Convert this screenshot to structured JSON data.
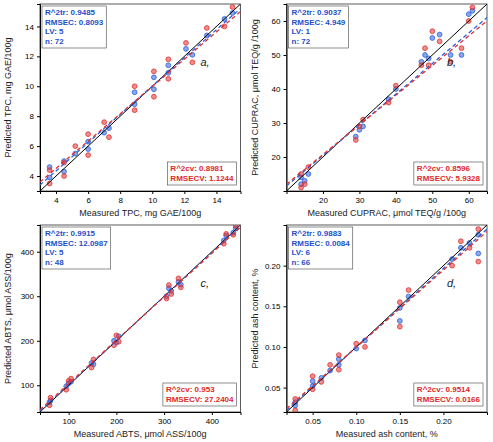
{
  "chart_data": [
    {
      "type": "scatter",
      "title": "a,",
      "x_label": "Measured TPC, mg GAE/100g",
      "y_label": "Predicted TPC, mg GAE/100g",
      "xlim": [
        3,
        15.5
      ],
      "ylim": [
        3,
        15.5
      ],
      "xticks": [
        4,
        6,
        8,
        10,
        12,
        14
      ],
      "yticks": [
        4,
        6,
        8,
        10,
        12,
        14
      ],
      "annotations": [
        {
          "color": "#1f4fc8",
          "lines": [
            "R^2tr: 0.9485",
            "RMSEC: 0.8093",
            "LV: 5",
            "n: 72"
          ]
        },
        {
          "color": "#e02828",
          "lines": [
            "R^2cv: 0.8981",
            "RMSECV: 1.1244"
          ]
        }
      ],
      "series": [
        {
          "type": "scatter",
          "marker": "circle",
          "color": "#2b5fd9",
          "x": [
            3.6,
            3.6,
            4.5,
            4.5,
            5.2,
            6.0,
            6.0,
            7.0,
            7.3,
            8.9,
            8.9,
            10.1,
            10.1,
            11.0,
            11.0,
            12.1,
            12.5,
            13.4,
            14.5,
            15.0
          ],
          "values": [
            3.9,
            4.6,
            4.3,
            5.0,
            5.5,
            6.3,
            5.8,
            6.9,
            7.2,
            9.6,
            8.8,
            10.6,
            9.8,
            10.9,
            11.4,
            12.5,
            12.1,
            13.4,
            14.5,
            14.9
          ]
        },
        {
          "type": "scatter",
          "marker": "circle",
          "color": "#e03030",
          "x": [
            3.6,
            3.6,
            4.5,
            4.5,
            5.2,
            6.0,
            6.0,
            7.0,
            7.3,
            8.9,
            8.9,
            10.1,
            10.1,
            11.0,
            11.0,
            12.1,
            12.5,
            13.4,
            14.5,
            15.0
          ],
          "values": [
            4.4,
            3.5,
            4.9,
            4.0,
            6.0,
            6.8,
            5.4,
            7.6,
            6.6,
            10.0,
            8.4,
            11.0,
            9.3,
            11.8,
            10.5,
            12.9,
            11.6,
            13.9,
            14.0,
            15.3
          ]
        },
        {
          "type": "line",
          "line_style": "solid",
          "color": "#000000",
          "x": [
            3,
            15.5
          ],
          "values": [
            3,
            15.5
          ]
        },
        {
          "type": "line",
          "line_style": "dashed",
          "color": "#2b5fd9",
          "x": [
            3,
            15.5
          ],
          "values": [
            3.4,
            15.2
          ]
        },
        {
          "type": "line",
          "line_style": "dashed",
          "color": "#e03030",
          "x": [
            3,
            15.5
          ],
          "values": [
            3.6,
            15.0
          ]
        }
      ]
    },
    {
      "type": "scatter",
      "title": "b,",
      "x_label": "Measured CUPRAC, μmol TEQ/g /100g",
      "y_label": "Predicted CUPRAC, μmol TEQ/g /100g",
      "xlim": [
        10,
        65
      ],
      "ylim": [
        10,
        65
      ],
      "xticks": [
        20,
        30,
        40,
        50,
        60
      ],
      "yticks": [
        20,
        30,
        40,
        50,
        60
      ],
      "annotations": [
        {
          "color": "#1f4fc8",
          "lines": [
            "R^2tr: 0.9037",
            "RMSEC: 4.949",
            "LV: 1",
            "n: 72"
          ]
        },
        {
          "color": "#e02828",
          "lines": [
            "R^2cv: 0.8596",
            "RMSECV: 5.9328"
          ]
        }
      ],
      "series": [
        {
          "type": "scatter",
          "marker": "circle",
          "color": "#2b5fd9",
          "x": [
            14,
            14,
            15,
            16,
            29,
            30,
            31,
            38,
            40,
            47,
            48,
            49,
            50,
            52,
            55,
            58,
            60,
            61
          ],
          "values": [
            12,
            14,
            13,
            15,
            26,
            28,
            29,
            37,
            40,
            48,
            50,
            49,
            55,
            56,
            50,
            50,
            62,
            63
          ]
        },
        {
          "type": "scatter",
          "marker": "circle",
          "color": "#e03030",
          "x": [
            14,
            14,
            15,
            16,
            29,
            30,
            31,
            38,
            40,
            47,
            48,
            49,
            50,
            52,
            55,
            58,
            60,
            61
          ],
          "values": [
            11,
            15,
            12,
            17,
            25,
            29,
            31,
            36,
            41,
            47,
            52,
            47,
            57,
            54,
            48,
            52,
            60,
            64
          ]
        },
        {
          "type": "line",
          "line_style": "solid",
          "color": "#000000",
          "x": [
            10,
            65
          ],
          "values": [
            10,
            65
          ]
        },
        {
          "type": "line",
          "line_style": "dashed",
          "color": "#2b5fd9",
          "x": [
            10,
            65
          ],
          "values": [
            11.5,
            61
          ]
        },
        {
          "type": "line",
          "line_style": "dashed",
          "color": "#e03030",
          "x": [
            10,
            65
          ],
          "values": [
            12,
            60
          ]
        }
      ]
    },
    {
      "type": "scatter",
      "title": "c,",
      "x_label": "Measured ABTS, μmol ASS/100g",
      "y_label": "Predicted ABTS, μmol ASS/100g",
      "xlim": [
        40,
        460
      ],
      "ylim": [
        40,
        460
      ],
      "xticks": [
        100,
        200,
        300,
        400
      ],
      "yticks": [
        100,
        200,
        300,
        400
      ],
      "annotations": [
        {
          "color": "#1f4fc8",
          "lines": [
            "R^2tr: 0.9915",
            "RMSEC: 12.0987",
            "LV: 5",
            "n: 48"
          ]
        },
        {
          "color": "#e02828",
          "lines": [
            "R^2cv: 0.953",
            "RMSECV: 27.2404"
          ]
        }
      ],
      "series": [
        {
          "type": "scatter",
          "marker": "circle",
          "color": "#2b5fd9",
          "x": [
            60,
            62,
            95,
            100,
            105,
            148,
            152,
            195,
            200,
            205,
            305,
            310,
            315,
            330,
            335,
            425,
            430,
            445,
            450
          ],
          "values": [
            62,
            66,
            98,
            104,
            108,
            150,
            147,
            200,
            196,
            210,
            300,
            318,
            312,
            332,
            326,
            425,
            436,
            443,
            452
          ]
        },
        {
          "type": "scatter",
          "marker": "circle",
          "color": "#e03030",
          "x": [
            60,
            62,
            95,
            100,
            105,
            148,
            152,
            195,
            200,
            205,
            305,
            310,
            315,
            330,
            335,
            425,
            430,
            445,
            450
          ],
          "values": [
            55,
            72,
            90,
            110,
            115,
            140,
            158,
            190,
            212,
            198,
            295,
            325,
            305,
            340,
            320,
            418,
            440,
            438,
            458
          ]
        },
        {
          "type": "line",
          "line_style": "solid",
          "color": "#000000",
          "x": [
            40,
            460
          ],
          "values": [
            40,
            460
          ]
        },
        {
          "type": "line",
          "line_style": "dashed",
          "color": "#2b5fd9",
          "x": [
            40,
            460
          ],
          "values": [
            42,
            458
          ]
        },
        {
          "type": "line",
          "line_style": "dashed",
          "color": "#e03030",
          "x": [
            40,
            460
          ],
          "values": [
            45,
            455
          ]
        }
      ]
    },
    {
      "type": "scatter",
      "title": "d,",
      "x_label": "Measured ash content, %",
      "y_label": "Predicted ash content, %",
      "xlim": [
        0.02,
        0.25
      ],
      "ylim": [
        0.02,
        0.25
      ],
      "xticks": [
        0.05,
        {
          "value": 0.1,
          "label": "0.10"
        },
        0.15,
        {
          "value": 0.2,
          "label": "0.20"
        }
      ],
      "yticks": [
        0.05,
        {
          "value": 0.1,
          "label": "0.10"
        },
        0.15,
        {
          "value": 0.2,
          "label": "0.20"
        }
      ],
      "annotations": [
        {
          "color": "#1f4fc8",
          "lines": [
            "R^2tr: 0.9883",
            "RMSEC: 0.0084",
            "LV: 6",
            "n: 66"
          ]
        },
        {
          "color": "#e02828",
          "lines": [
            "R^2cv: 0.9514",
            "RMSECV: 0.0166"
          ]
        }
      ],
      "series": [
        {
          "type": "scatter",
          "marker": "circle",
          "color": "#2b5fd9",
          "x": [
            0.03,
            0.03,
            0.05,
            0.05,
            0.06,
            0.07,
            0.08,
            0.08,
            0.1,
            0.11,
            0.15,
            0.15,
            0.16,
            0.21,
            0.22,
            0.23,
            0.24,
            0.24
          ],
          "values": [
            0.032,
            0.028,
            0.052,
            0.058,
            0.062,
            0.071,
            0.078,
            0.085,
            0.098,
            0.108,
            0.148,
            0.132,
            0.162,
            0.208,
            0.222,
            0.228,
            0.238,
            0.215
          ]
        },
        {
          "type": "scatter",
          "marker": "circle",
          "color": "#e03030",
          "x": [
            0.03,
            0.03,
            0.05,
            0.05,
            0.06,
            0.07,
            0.08,
            0.08,
            0.1,
            0.11,
            0.15,
            0.15,
            0.16,
            0.21,
            0.22,
            0.23,
            0.24,
            0.24
          ],
          "values": [
            0.036,
            0.022,
            0.048,
            0.064,
            0.057,
            0.078,
            0.072,
            0.09,
            0.104,
            0.1,
            0.155,
            0.125,
            0.17,
            0.2,
            0.23,
            0.222,
            0.245,
            0.205
          ]
        },
        {
          "type": "line",
          "line_style": "solid",
          "color": "#000000",
          "x": [
            0.02,
            0.25
          ],
          "values": [
            0.02,
            0.25
          ]
        },
        {
          "type": "line",
          "line_style": "dashed",
          "color": "#2b5fd9",
          "x": [
            0.02,
            0.25
          ],
          "values": [
            0.022,
            0.245
          ]
        },
        {
          "type": "line",
          "line_style": "dashed",
          "color": "#e03030",
          "x": [
            0.02,
            0.25
          ],
          "values": [
            0.024,
            0.242
          ]
        }
      ]
    }
  ]
}
